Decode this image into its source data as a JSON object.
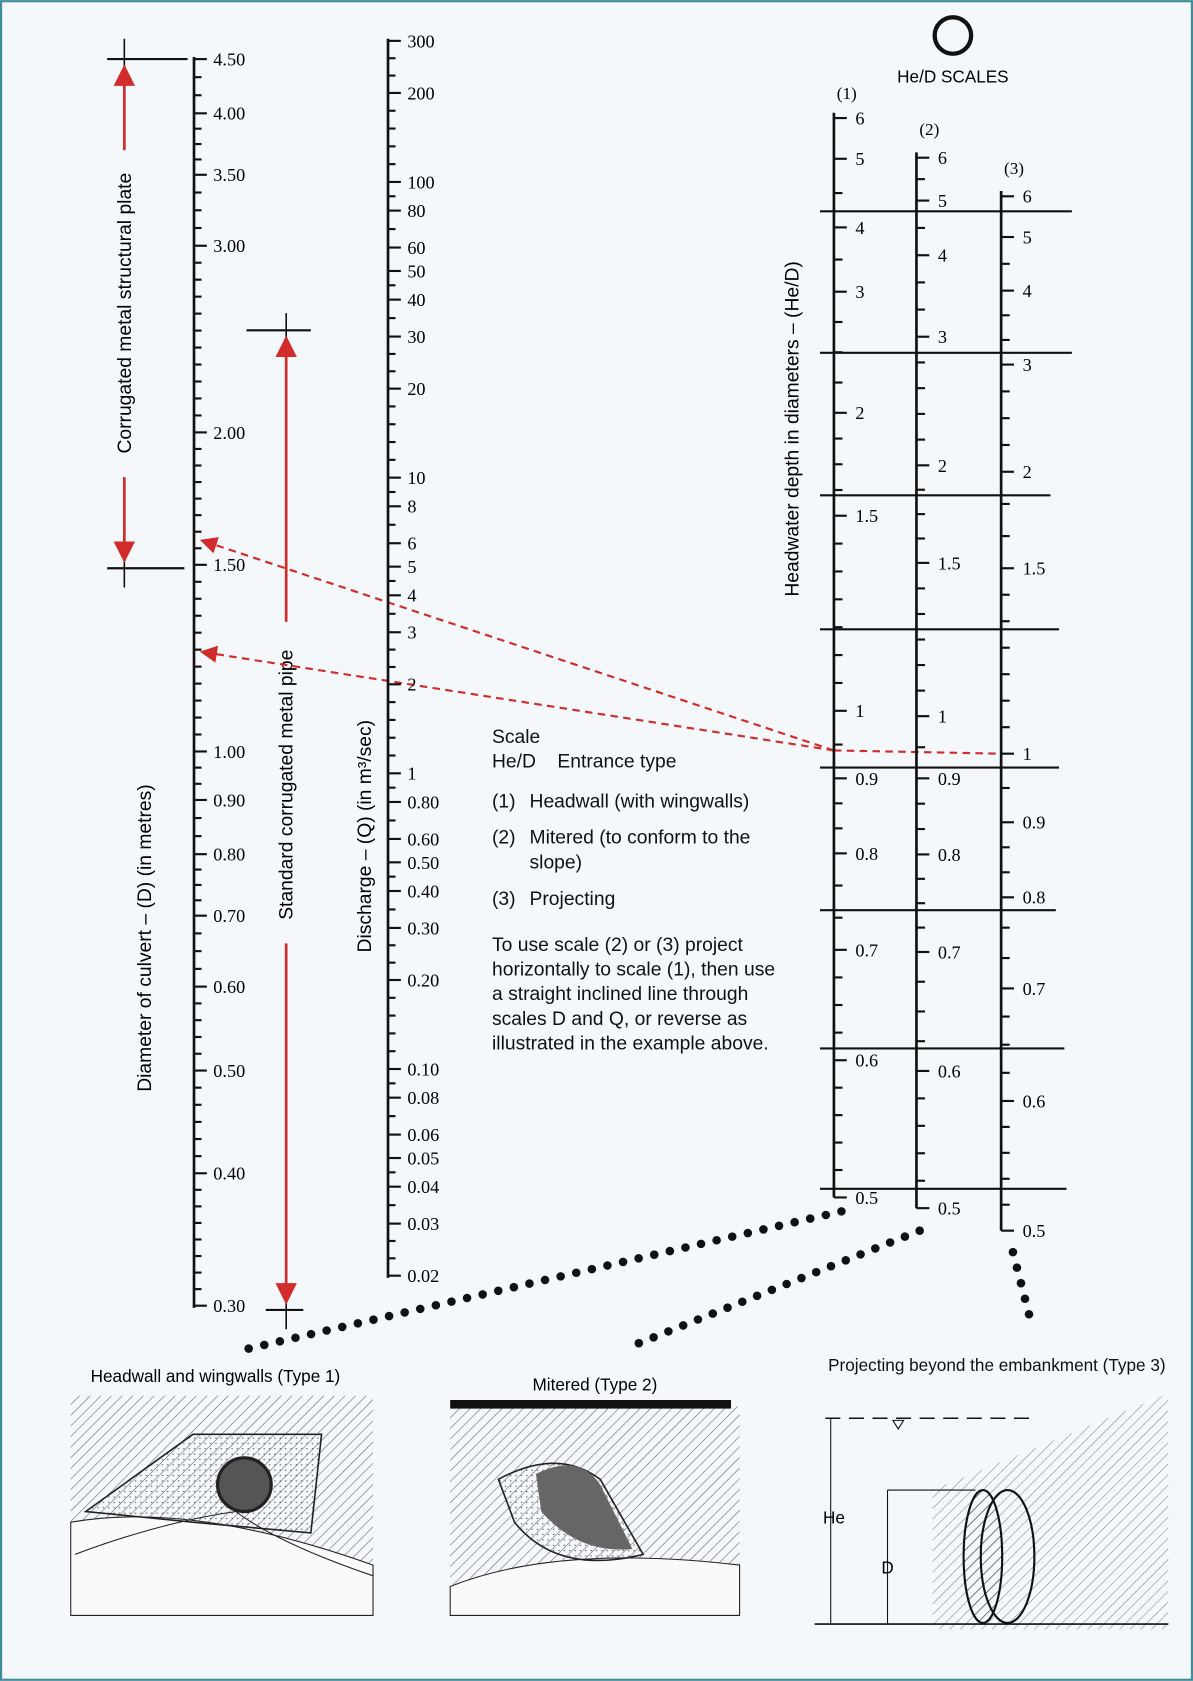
{
  "diameter_scale": {
    "label": "Diameter of culvert – (D) (in metres)",
    "ticks": [
      "4.50",
      "4.00",
      "3.50",
      "3.00",
      "2.00",
      "1.50",
      "1.00",
      "0.90",
      "0.80",
      "0.70",
      "0.60",
      "0.50",
      "0.40",
      "0.30"
    ]
  },
  "brackets": {
    "structural_plate": "Corrugated metal structural plate",
    "standard_pipe": "Standard corrugated metal pipe"
  },
  "discharge_scale": {
    "label": "Discharge – (Q) (in m³/sec)",
    "ticks": [
      "300",
      "200",
      "100",
      "80",
      "60",
      "50",
      "40",
      "30",
      "20",
      "10",
      "8",
      "6",
      "5",
      "4",
      "3",
      "2",
      "1",
      "0.80",
      "0.60",
      "0.50",
      "0.40",
      "0.30",
      "0.20",
      "0.10",
      "0.08",
      "0.06",
      "0.05",
      "0.04",
      "0.03",
      "0.02"
    ]
  },
  "hed": {
    "title": "He/D SCALES",
    "axis_label": "Headwater depth in diameters – (He/D)",
    "scales": [
      {
        "name": "(1)",
        "ticks": [
          "6",
          "5",
          "4",
          "3",
          "2",
          "1.5",
          "1",
          "0.9",
          "0.8",
          "0.7",
          "0.6",
          "0.5"
        ]
      },
      {
        "name": "(2)",
        "ticks": [
          "6",
          "5",
          "4",
          "3",
          "2",
          "1.5",
          "1",
          "0.9",
          "0.8",
          "0.7",
          "0.6",
          "0.5"
        ]
      },
      {
        "name": "(3)",
        "ticks": [
          "6",
          "5",
          "4",
          "3",
          "2",
          "1.5",
          "1",
          "0.9",
          "0.8",
          "0.7",
          "0.6",
          "0.5"
        ]
      }
    ]
  },
  "legend": {
    "header": "Scale",
    "col1": "He/D",
    "col2": "Entrance type",
    "items": [
      {
        "num": "(1)",
        "text": "Headwall (with wingwalls)"
      },
      {
        "num": "(2)",
        "text": "Mitered (to conform to the slope)"
      },
      {
        "num": "(3)",
        "text": "Projecting"
      }
    ],
    "note": "To use scale (2) or (3) project horizontally to scale (1), then use a straight inclined line through scales D and Q, or reverse as illustrated in the example above."
  },
  "illustrations": [
    {
      "caption": "Headwall and wingwalls (Type 1)"
    },
    {
      "caption": "Mitered (Type 2)"
    },
    {
      "caption": "Projecting beyond the embankment (Type 3)",
      "labels": [
        "He",
        "D"
      ]
    }
  ]
}
